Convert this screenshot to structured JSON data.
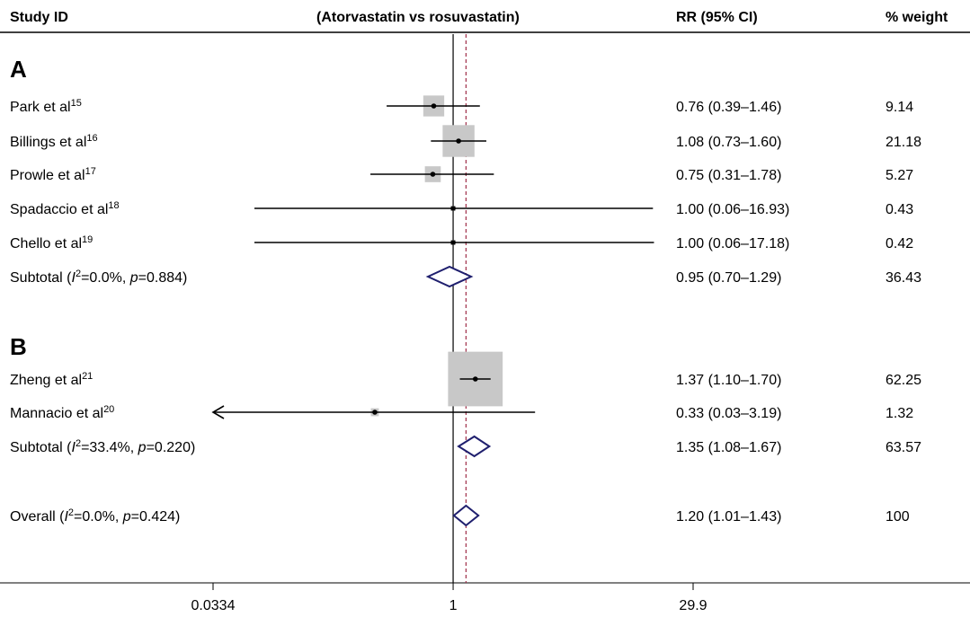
{
  "chart_data": {
    "type": "forest",
    "headers": {
      "study": "Study ID",
      "comparison": "(Atorvastatin vs rosuvastatin)",
      "rr": "RR (95% CI)",
      "weight": "% weight"
    },
    "x_scale": "log",
    "xlim": [
      0.0334,
      29.9
    ],
    "x_ticks": [
      "0.0334",
      "1",
      "29.9"
    ],
    "reference_line": 1,
    "overall_line": 1.2,
    "colors": {
      "box": "#c8c8c8",
      "line": "#000000",
      "diamond": "#1f1f6e",
      "overall_line": "#a0304a"
    },
    "rows": [
      {
        "kind": "group",
        "label": "A"
      },
      {
        "kind": "study",
        "name": "Park et al",
        "ref": "15",
        "rr": 0.76,
        "lo": 0.39,
        "hi": 1.46,
        "rr_text": "0.76 (0.39–1.46)",
        "weight": 9.14,
        "weight_text": "9.14"
      },
      {
        "kind": "study",
        "name": "Billings et al",
        "ref": "16",
        "rr": 1.08,
        "lo": 0.73,
        "hi": 1.6,
        "rr_text": "1.08 (0.73–1.60)",
        "weight": 21.18,
        "weight_text": "21.18"
      },
      {
        "kind": "study",
        "name": "Prowle et al",
        "ref": "17",
        "rr": 0.75,
        "lo": 0.31,
        "hi": 1.78,
        "rr_text": "0.75 (0.31–1.78)",
        "weight": 5.27,
        "weight_text": "5.27"
      },
      {
        "kind": "study",
        "name": "Spadaccio et al",
        "ref": "18",
        "rr": 1.0,
        "lo": 0.06,
        "hi": 16.93,
        "rr_text": "1.00 (0.06–16.93)",
        "weight": 0.43,
        "weight_text": "0.43"
      },
      {
        "kind": "study",
        "name": "Chello et al",
        "ref": "19",
        "rr": 1.0,
        "lo": 0.06,
        "hi": 17.18,
        "rr_text": "1.00 (0.06–17.18)",
        "weight": 0.42,
        "weight_text": "0.42"
      },
      {
        "kind": "subtotal",
        "label": "Subtotal (I²=0.0%, p=0.884)",
        "i2": "0.0%",
        "p": "0.884",
        "rr": 0.95,
        "lo": 0.7,
        "hi": 1.29,
        "rr_text": "0.95 (0.70–1.29)",
        "weight_text": "36.43"
      },
      {
        "kind": "group",
        "label": "B"
      },
      {
        "kind": "study",
        "name": "Zheng et al",
        "ref": "21",
        "rr": 1.37,
        "lo": 1.1,
        "hi": 1.7,
        "rr_text": "1.37 (1.10–1.70)",
        "weight": 62.25,
        "weight_text": "62.25"
      },
      {
        "kind": "study",
        "name": "Mannacio et al",
        "ref": "20",
        "rr": 0.33,
        "lo": 0.03,
        "hi": 3.19,
        "rr_text": "0.33 (0.03–3.19)",
        "weight": 1.32,
        "weight_text": "1.32",
        "arrow_left": true
      },
      {
        "kind": "subtotal",
        "label": "Subtotal (I²=33.4%, p=0.220)",
        "i2": "33.4%",
        "p": "0.220",
        "rr": 1.35,
        "lo": 1.08,
        "hi": 1.67,
        "rr_text": "1.35 (1.08–1.67)",
        "weight_text": "63.57"
      },
      {
        "kind": "overall",
        "label": "Overall (I²=0.0%, p=0.424)",
        "i2": "0.0%",
        "p": "0.424",
        "rr": 1.2,
        "lo": 1.01,
        "hi": 1.43,
        "rr_text": "1.20 (1.01–1.43)",
        "weight_text": "100"
      }
    ]
  }
}
